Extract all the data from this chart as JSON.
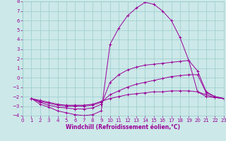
{
  "xlabel": "Windchill (Refroidissement éolien,°C)",
  "xlim": [
    0,
    23
  ],
  "ylim": [
    -4,
    8
  ],
  "xticks": [
    0,
    1,
    2,
    3,
    4,
    5,
    6,
    7,
    8,
    9,
    10,
    11,
    12,
    13,
    14,
    15,
    16,
    17,
    18,
    19,
    20,
    21,
    22,
    23
  ],
  "yticks": [
    -4,
    -3,
    -2,
    -1,
    0,
    1,
    2,
    3,
    4,
    5,
    6,
    7,
    8
  ],
  "bg_color": "#cce8e8",
  "line_color": "#990099",
  "grid_color": "#99cccc",
  "curves": [
    {
      "x": [
        1,
        2,
        3,
        4,
        5,
        6,
        7,
        8,
        9,
        10,
        11,
        12,
        13,
        14,
        15,
        16,
        17,
        18,
        19,
        20,
        21,
        22,
        23
      ],
      "y": [
        -2.2,
        -2.8,
        -3.1,
        -3.5,
        -3.7,
        -3.9,
        -4.0,
        -3.9,
        -3.5,
        3.5,
        5.2,
        6.5,
        7.3,
        7.9,
        7.7,
        7.0,
        6.0,
        4.2,
        1.8,
        -1.5,
        -2.0,
        -2.1,
        -2.2
      ]
    },
    {
      "x": [
        1,
        2,
        3,
        4,
        5,
        6,
        7,
        8,
        9,
        10,
        11,
        12,
        13,
        14,
        15,
        16,
        17,
        18,
        19,
        20,
        21,
        22,
        23
      ],
      "y": [
        -2.2,
        -2.6,
        -2.9,
        -3.1,
        -3.2,
        -3.3,
        -3.3,
        -3.2,
        -2.8,
        -0.5,
        0.3,
        0.8,
        1.1,
        1.3,
        1.4,
        1.5,
        1.6,
        1.7,
        1.8,
        0.7,
        -1.5,
        -2.0,
        -2.2
      ]
    },
    {
      "x": [
        1,
        2,
        3,
        4,
        5,
        6,
        7,
        8,
        9,
        10,
        11,
        12,
        13,
        14,
        15,
        16,
        17,
        18,
        19,
        20,
        21,
        22,
        23
      ],
      "y": [
        -2.2,
        -2.5,
        -2.7,
        -2.9,
        -3.0,
        -3.0,
        -3.0,
        -2.9,
        -2.6,
        -1.8,
        -1.4,
        -1.0,
        -0.7,
        -0.5,
        -0.3,
        -0.1,
        0.1,
        0.2,
        0.3,
        0.3,
        -1.6,
        -2.0,
        -2.2
      ]
    },
    {
      "x": [
        1,
        2,
        3,
        4,
        5,
        6,
        7,
        8,
        9,
        10,
        11,
        12,
        13,
        14,
        15,
        16,
        17,
        18,
        19,
        20,
        21,
        22,
        23
      ],
      "y": [
        -2.2,
        -2.4,
        -2.6,
        -2.8,
        -2.9,
        -2.9,
        -2.9,
        -2.8,
        -2.5,
        -2.2,
        -2.0,
        -1.8,
        -1.7,
        -1.6,
        -1.5,
        -1.5,
        -1.4,
        -1.4,
        -1.4,
        -1.5,
        -1.8,
        -2.1,
        -2.2
      ]
    }
  ]
}
